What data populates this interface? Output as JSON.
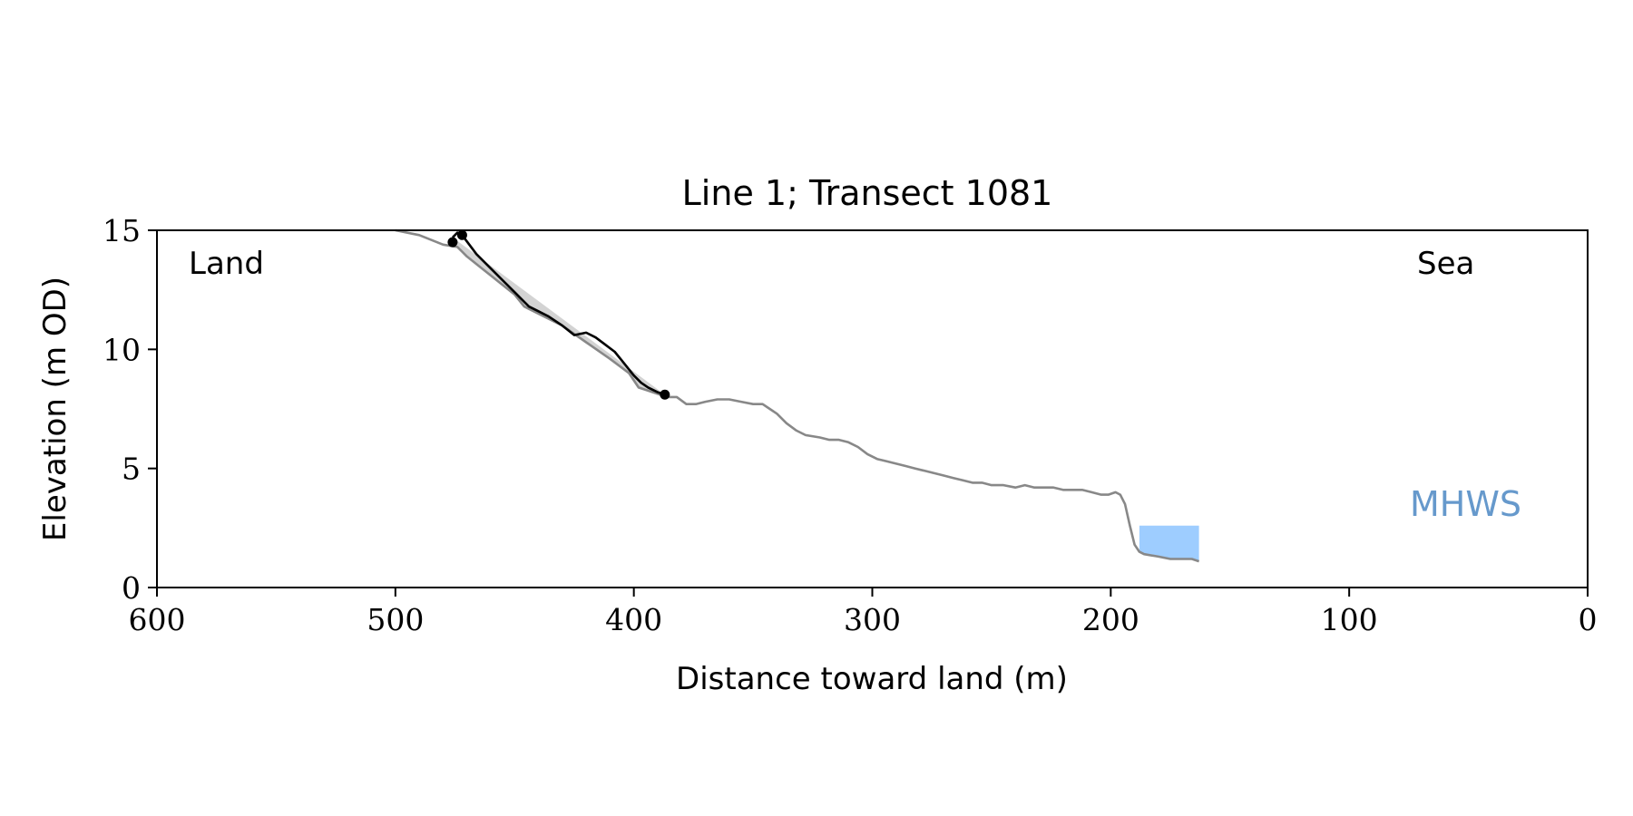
{
  "chart_data": {
    "type": "line",
    "title": "Line 1; Transect 1081",
    "xlabel": "Distance toward land (m)",
    "ylabel": "Elevation (m OD)",
    "xlim": [
      600,
      0
    ],
    "ylim": [
      0,
      15
    ],
    "x_ticks": [
      600,
      500,
      400,
      300,
      200,
      100,
      0
    ],
    "y_ticks": [
      0,
      5,
      10,
      15
    ],
    "grid": false,
    "annotations": {
      "left": "Land",
      "right": "Sea",
      "mhws": "MHWS"
    },
    "colors": {
      "profile": "#888888",
      "cliff": "#000000",
      "fill": "#d3d3d3",
      "water": "#9ecdff",
      "mhws_label": "#6699cc"
    },
    "series": [
      {
        "role": "profile",
        "x": [
          500,
          490,
          480,
          474,
          470,
          465,
          460,
          455,
          450,
          446,
          440,
          430,
          420,
          410,
          402,
          398,
          392,
          386,
          382,
          378,
          374,
          370,
          365,
          360,
          355,
          350,
          346,
          343,
          340,
          336,
          332,
          328,
          322,
          318,
          314,
          310,
          306,
          302,
          298,
          294,
          290,
          286,
          282,
          278,
          274,
          270,
          266,
          262,
          258,
          254,
          250,
          245,
          240,
          236,
          232,
          228,
          224,
          220,
          216,
          212,
          208,
          204,
          201,
          198,
          196,
          194,
          192,
          190,
          188,
          186,
          180,
          175,
          170,
          166,
          163
        ],
        "y": [
          15.0,
          14.8,
          14.4,
          14.3,
          13.9,
          13.5,
          13.1,
          12.7,
          12.3,
          11.8,
          11.5,
          11.0,
          10.3,
          9.6,
          9.0,
          8.4,
          8.2,
          8.0,
          8.0,
          7.7,
          7.7,
          7.8,
          7.9,
          7.9,
          7.8,
          7.7,
          7.7,
          7.5,
          7.3,
          6.9,
          6.6,
          6.4,
          6.3,
          6.2,
          6.2,
          6.1,
          5.9,
          5.6,
          5.4,
          5.3,
          5.2,
          5.1,
          5.0,
          4.9,
          4.8,
          4.7,
          4.6,
          4.5,
          4.4,
          4.4,
          4.3,
          4.3,
          4.2,
          4.3,
          4.2,
          4.2,
          4.2,
          4.1,
          4.1,
          4.1,
          4.0,
          3.9,
          3.9,
          4.0,
          3.9,
          3.5,
          2.6,
          1.8,
          1.5,
          1.4,
          1.3,
          1.2,
          1.2,
          1.2,
          1.1
        ]
      },
      {
        "role": "cliff",
        "x": [
          476,
          474,
          472,
          469,
          466,
          462,
          458,
          454,
          450,
          447,
          444,
          440,
          436,
          430,
          425,
          420,
          416,
          412,
          408,
          404,
          400,
          397,
          394,
          390,
          387
        ],
        "y": [
          14.7,
          14.9,
          14.8,
          14.4,
          14.0,
          13.6,
          13.2,
          12.8,
          12.4,
          12.1,
          11.8,
          11.6,
          11.4,
          11.0,
          10.6,
          10.7,
          10.5,
          10.2,
          9.9,
          9.4,
          8.9,
          8.6,
          8.4,
          8.2,
          8.1
        ]
      }
    ],
    "markers": [
      {
        "x": 476,
        "y": 14.5
      },
      {
        "x": 472,
        "y": 14.8
      },
      {
        "x": 387,
        "y": 8.1
      }
    ],
    "water_box": {
      "x": [
        188,
        163
      ],
      "y_top": 2.6
    }
  }
}
